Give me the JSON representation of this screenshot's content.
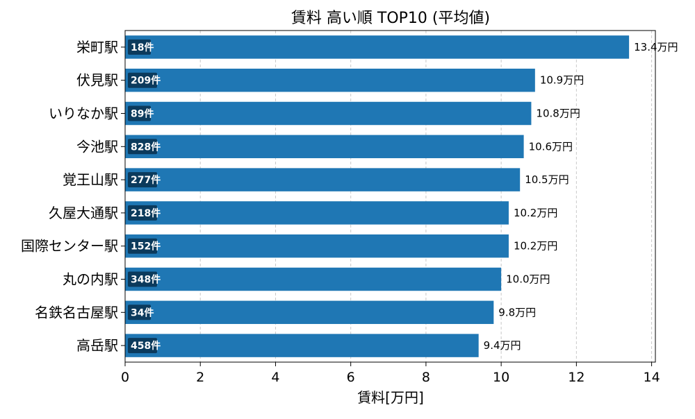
{
  "chart_data": {
    "type": "bar",
    "orientation": "horizontal",
    "title": "賃料 高い順 TOP10 (平均値)",
    "xlabel": "賃料[万円]",
    "ylabel": "",
    "xlim": [
      0,
      14.1
    ],
    "xticks": [
      0,
      2,
      4,
      6,
      8,
      10,
      12,
      14
    ],
    "grid": "x-dashed",
    "categories": [
      "栄町駅",
      "伏見駅",
      "いりなか駅",
      "今池駅",
      "覚王山駅",
      "久屋大通駅",
      "国際センター駅",
      "丸の内駅",
      "名鉄名古屋駅",
      "高岳駅"
    ],
    "values": [
      13.4,
      10.9,
      10.8,
      10.6,
      10.5,
      10.2,
      10.2,
      10.0,
      9.8,
      9.4
    ],
    "value_labels": [
      "13.4万円",
      "10.9万円",
      "10.8万円",
      "10.6万円",
      "10.5万円",
      "10.2万円",
      "10.2万円",
      "10.0万円",
      "9.8万円",
      "9.4万円"
    ],
    "count_labels": [
      "18件",
      "209件",
      "89件",
      "828件",
      "277件",
      "218件",
      "152件",
      "348件",
      "34件",
      "458件"
    ],
    "colors": {
      "bar": "#1f77b4",
      "badge": "#0b3a5c",
      "grid": "#c8c8c8"
    }
  }
}
